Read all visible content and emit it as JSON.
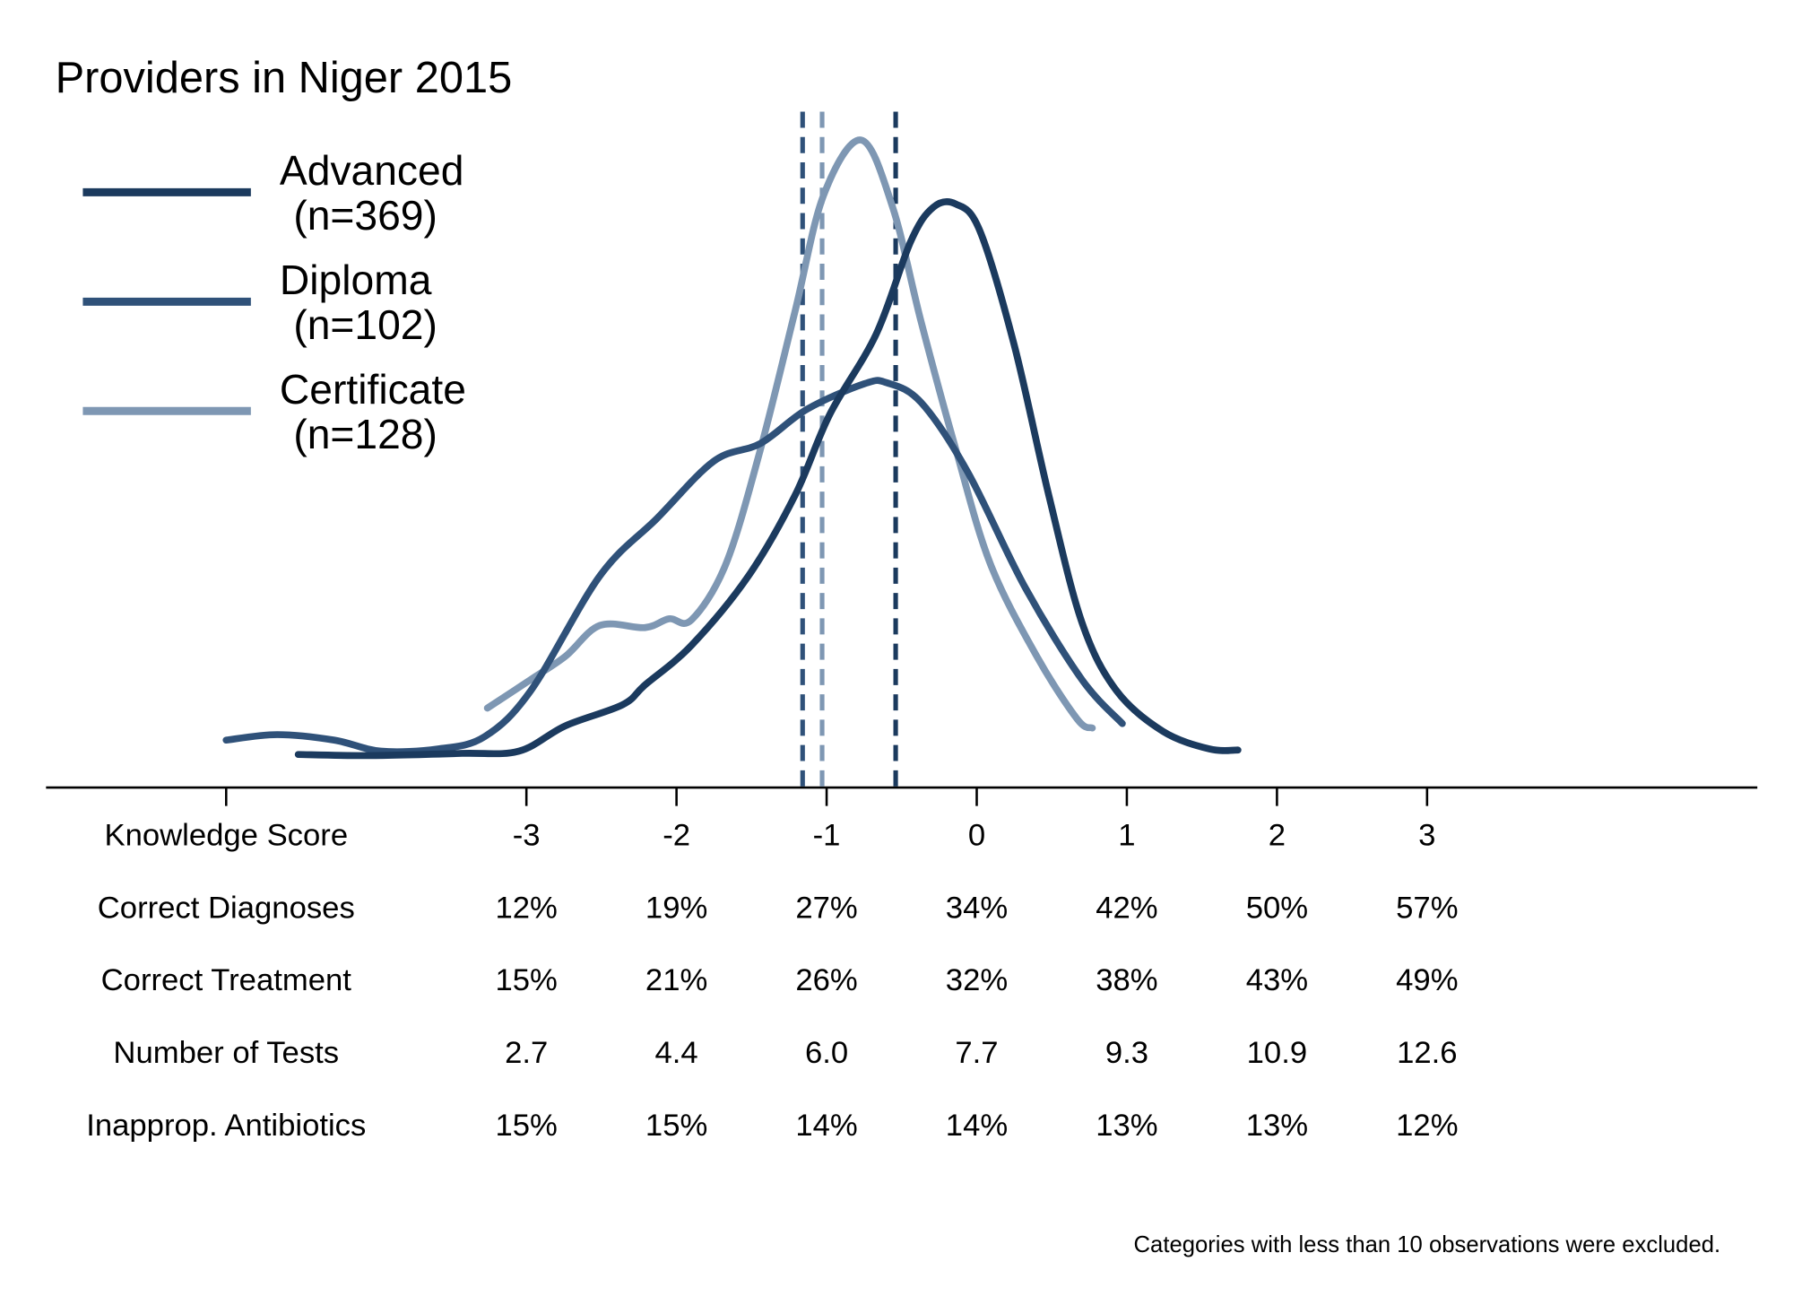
{
  "chart_data": {
    "type": "line",
    "title": "Providers in Niger 2015",
    "xlim": [
      -6.2,
      5.2
    ],
    "ylim": [
      0,
      0.62
    ],
    "xticks": [
      {
        "value": -5,
        "label": "Knowledge Score"
      },
      -3,
      -2,
      -1,
      0,
      1,
      2,
      3
    ],
    "series": [
      {
        "name": "Advanced",
        "n": "(n=369)",
        "color": "#1b3a5e",
        "mean": -0.54,
        "x": [
          -4.52,
          -4.05,
          -3.43,
          -3.05,
          -2.74,
          -2.36,
          -2.21,
          -1.9,
          -1.52,
          -1.21,
          -0.98,
          -0.67,
          -0.44,
          -0.29,
          -0.14,
          0.02,
          0.25,
          0.48,
          0.7,
          0.93,
          1.24,
          1.55,
          1.74
        ],
        "values": [
          0.03,
          0.029,
          0.031,
          0.033,
          0.056,
          0.075,
          0.093,
          0.129,
          0.192,
          0.265,
          0.338,
          0.411,
          0.495,
          0.526,
          0.529,
          0.505,
          0.401,
          0.265,
          0.15,
          0.088,
          0.051,
          0.035,
          0.034
        ]
      },
      {
        "name": "Diploma",
        "n": "(n=102)",
        "color": "#2f5179",
        "mean": -1.16,
        "x": [
          -5.0,
          -4.66,
          -4.28,
          -3.97,
          -3.59,
          -3.28,
          -2.97,
          -2.51,
          -2.13,
          -1.75,
          -1.44,
          -1.13,
          -0.75,
          -0.6,
          -0.37,
          -0.06,
          0.32,
          0.7,
          0.97
        ],
        "values": [
          0.043,
          0.048,
          0.043,
          0.033,
          0.035,
          0.046,
          0.088,
          0.192,
          0.244,
          0.296,
          0.312,
          0.343,
          0.366,
          0.367,
          0.349,
          0.286,
          0.182,
          0.098,
          0.058
        ]
      },
      {
        "name": "Certificate",
        "n": "(n=128)",
        "color": "#7e97b3",
        "mean": -1.03,
        "x": [
          -3.26,
          -2.97,
          -2.74,
          -2.51,
          -2.21,
          -2.05,
          -1.9,
          -1.67,
          -1.44,
          -1.21,
          -1.02,
          -0.77,
          -0.56,
          -0.37,
          -0.14,
          0.09,
          0.4,
          0.67,
          0.77
        ],
        "values": [
          0.072,
          0.098,
          0.119,
          0.147,
          0.145,
          0.153,
          0.152,
          0.203,
          0.307,
          0.432,
          0.537,
          0.587,
          0.526,
          0.422,
          0.307,
          0.203,
          0.119,
          0.062,
          0.054
        ]
      }
    ],
    "table": {
      "rows": [
        {
          "label": "Correct Diagnoses",
          "cells": [
            "12%",
            "19%",
            "27%",
            "34%",
            "42%",
            "50%",
            "57%"
          ]
        },
        {
          "label": "Correct Treatment",
          "cells": [
            "15%",
            "21%",
            "26%",
            "32%",
            "38%",
            "43%",
            "49%"
          ]
        },
        {
          "label": "Number of Tests",
          "cells": [
            "2.7",
            "4.4",
            "6.0",
            "7.7",
            "9.3",
            "10.9",
            "12.6"
          ]
        },
        {
          "label": "Inapprop. Antibiotics",
          "cells": [
            "15%",
            "15%",
            "14%",
            "14%",
            "13%",
            "13%",
            "12%"
          ]
        }
      ]
    },
    "note": "Categories with less than 10 observations were excluded."
  }
}
